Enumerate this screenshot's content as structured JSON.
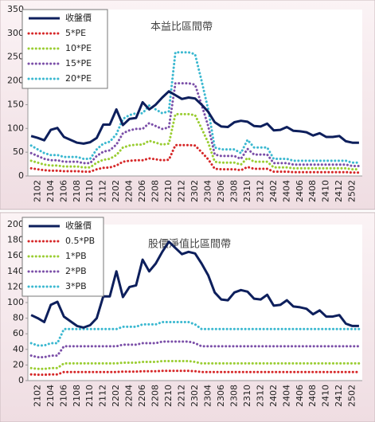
{
  "chart_data": [
    {
      "type": "line",
      "title": "本益比區間帶",
      "categories": [
        null,
        "2102",
        null,
        "2104",
        null,
        "2106",
        null,
        "2108",
        null,
        "2110",
        null,
        "2112",
        null,
        "2202",
        null,
        "2204",
        null,
        "2206",
        null,
        "2208",
        null,
        "2210",
        null,
        "2212",
        null,
        "2302",
        null,
        "2304",
        null,
        "2306",
        null,
        "2308",
        null,
        "2310",
        null,
        "2312",
        null,
        "2402",
        null,
        "2404",
        null,
        "2406",
        null,
        "2408",
        null,
        "2410",
        null,
        "2412",
        null,
        "2502",
        null
      ],
      "ylim": [
        0,
        350
      ],
      "yticks": [
        0,
        50,
        100,
        150,
        200,
        250,
        300,
        350
      ],
      "legend": "top-left",
      "series": [
        {
          "name": "收盤價",
          "color": "#0d1f5c",
          "style": "solid",
          "values": [
            84,
            80,
            75,
            97,
            101,
            82,
            76,
            70,
            68,
            71,
            80,
            108,
            108,
            140,
            107,
            120,
            122,
            155,
            140,
            150,
            165,
            178,
            170,
            162,
            165,
            163,
            150,
            135,
            113,
            104,
            103,
            113,
            116,
            114,
            105,
            104,
            110,
            96,
            97,
            103,
            95,
            94,
            92,
            85,
            90,
            82,
            82,
            84,
            73,
            70,
            70
          ]
        },
        {
          "name": "5*PE",
          "color": "#d62728",
          "style": "dotted",
          "values": [
            16,
            14,
            12,
            11,
            11,
            10,
            10,
            10,
            9,
            9,
            14,
            17,
            18,
            22,
            30,
            32,
            33,
            33,
            37,
            35,
            33,
            34,
            65,
            65,
            65,
            64,
            50,
            35,
            15,
            14,
            14,
            14,
            12,
            19,
            15,
            15,
            15,
            9,
            9,
            9,
            8,
            8,
            8,
            8,
            8,
            8,
            8,
            8,
            8,
            7,
            7
          ]
        },
        {
          "name": "10*PE",
          "color": "#9acd32",
          "style": "dotted",
          "values": [
            32,
            28,
            24,
            22,
            22,
            20,
            20,
            20,
            18,
            18,
            28,
            34,
            36,
            44,
            60,
            64,
            66,
            66,
            74,
            70,
            66,
            68,
            130,
            130,
            130,
            128,
            100,
            70,
            30,
            28,
            28,
            28,
            24,
            38,
            30,
            30,
            30,
            18,
            18,
            18,
            16,
            16,
            16,
            16,
            16,
            16,
            16,
            16,
            16,
            14,
            14
          ]
        },
        {
          "name": "15*PE",
          "color": "#7b4fa8",
          "style": "dotted",
          "values": [
            48,
            42,
            36,
            33,
            33,
            30,
            30,
            30,
            27,
            27,
            42,
            51,
            54,
            66,
            90,
            96,
            99,
            99,
            111,
            105,
            99,
            102,
            195,
            195,
            195,
            192,
            150,
            105,
            45,
            42,
            42,
            42,
            36,
            57,
            45,
            45,
            45,
            27,
            27,
            27,
            24,
            24,
            24,
            24,
            24,
            24,
            24,
            24,
            24,
            21,
            21
          ]
        },
        {
          "name": "20*PE",
          "color": "#3bb8d0",
          "style": "dotted",
          "values": [
            64,
            56,
            48,
            44,
            44,
            40,
            40,
            40,
            36,
            36,
            56,
            68,
            72,
            88,
            120,
            128,
            132,
            132,
            148,
            140,
            132,
            136,
            260,
            260,
            260,
            256,
            200,
            140,
            60,
            56,
            56,
            56,
            48,
            76,
            60,
            60,
            60,
            36,
            36,
            36,
            32,
            32,
            32,
            32,
            32,
            32,
            32,
            32,
            32,
            28,
            28
          ]
        }
      ]
    },
    {
      "type": "line",
      "title": "股價淨值比區間帶",
      "categories": [
        null,
        "2102",
        null,
        "2104",
        null,
        "2106",
        null,
        "2108",
        null,
        "2110",
        null,
        "2112",
        null,
        "2202",
        null,
        "2204",
        null,
        "2206",
        null,
        "2208",
        null,
        "2210",
        null,
        "2212",
        null,
        "2302",
        null,
        "2304",
        null,
        "2306",
        null,
        "2308",
        null,
        "2310",
        null,
        "2312",
        null,
        "2402",
        null,
        "2404",
        null,
        "2406",
        null,
        "2408",
        null,
        "2410",
        null,
        "2412",
        null,
        "2502",
        null
      ],
      "ylim": [
        0,
        200
      ],
      "yticks": [
        0,
        20,
        40,
        60,
        80,
        100,
        120,
        140,
        160,
        180,
        200
      ],
      "legend": "top-left",
      "series": [
        {
          "name": "收盤價",
          "color": "#0d1f5c",
          "style": "solid",
          "values": [
            84,
            80,
            75,
            97,
            101,
            82,
            76,
            70,
            68,
            71,
            80,
            108,
            108,
            140,
            107,
            120,
            122,
            155,
            140,
            150,
            165,
            178,
            170,
            162,
            165,
            163,
            150,
            135,
            113,
            104,
            103,
            113,
            116,
            114,
            105,
            104,
            110,
            96,
            97,
            103,
            95,
            94,
            92,
            85,
            90,
            82,
            82,
            84,
            73,
            70,
            70
          ]
        },
        {
          "name": "0.5*PB",
          "color": "#d62728",
          "style": "dotted",
          "values": [
            8,
            7.5,
            7.5,
            8,
            8,
            11,
            11,
            11,
            11,
            11,
            11,
            11,
            11,
            11,
            11.5,
            11.5,
            11.5,
            12,
            12,
            12,
            12.5,
            12.5,
            12.5,
            12.5,
            12.5,
            12,
            11,
            11,
            11,
            11,
            11,
            11,
            11,
            11,
            11,
            11,
            11,
            11,
            11,
            11,
            11,
            11,
            11,
            11,
            11,
            11,
            11,
            11,
            11,
            11,
            11
          ]
        },
        {
          "name": "1*PB",
          "color": "#9acd32",
          "style": "dotted",
          "values": [
            16,
            15,
            15,
            16,
            16,
            22,
            22,
            22,
            22,
            22,
            22,
            22,
            22,
            22,
            23,
            23,
            23,
            24,
            24,
            24,
            25,
            25,
            25,
            25,
            25,
            24,
            22,
            22,
            22,
            22,
            22,
            22,
            22,
            22,
            22,
            22,
            22,
            22,
            22,
            22,
            22,
            22,
            22,
            22,
            22,
            22,
            22,
            22,
            22,
            22,
            22
          ]
        },
        {
          "name": "2*PB",
          "color": "#7b4fa8",
          "style": "dotted",
          "values": [
            32,
            30,
            30,
            32,
            32,
            44,
            44,
            44,
            44,
            44,
            44,
            44,
            44,
            44,
            46,
            46,
            46,
            48,
            48,
            48,
            50,
            50,
            50,
            50,
            50,
            48,
            44,
            44,
            44,
            44,
            44,
            44,
            44,
            44,
            44,
            44,
            44,
            44,
            44,
            44,
            44,
            44,
            44,
            44,
            44,
            44,
            44,
            44,
            44,
            44,
            44
          ]
        },
        {
          "name": "3*PB",
          "color": "#3bb8d0",
          "style": "dotted",
          "values": [
            48,
            45,
            45,
            48,
            48,
            66,
            66,
            66,
            66,
            66,
            66,
            66,
            66,
            66,
            69,
            69,
            69,
            72,
            72,
            72,
            75,
            75,
            75,
            75,
            75,
            72,
            66,
            66,
            66,
            66,
            66,
            66,
            66,
            66,
            66,
            66,
            66,
            66,
            66,
            66,
            66,
            66,
            66,
            66,
            66,
            66,
            66,
            66,
            66,
            66,
            66
          ]
        }
      ]
    }
  ]
}
